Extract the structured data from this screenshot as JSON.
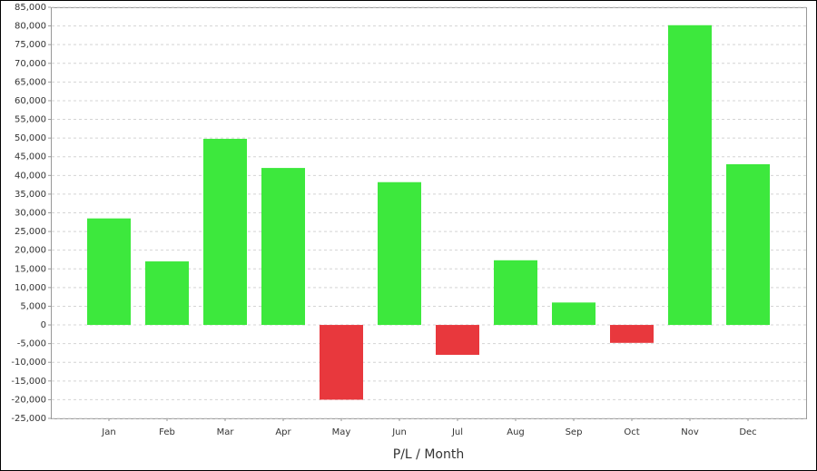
{
  "chart_data": {
    "type": "bar",
    "x_label": "P/L / Month",
    "categories": [
      "Jan",
      "Feb",
      "Mar",
      "Apr",
      "May",
      "Jun",
      "Jul",
      "Aug",
      "Sep",
      "Oct",
      "Nov",
      "Dec"
    ],
    "values": [
      28500,
      17000,
      49800,
      42000,
      -20000,
      38200,
      -8000,
      17300,
      6000,
      -4800,
      80200,
      43000
    ],
    "colors": {
      "positive": "#3de83d",
      "negative": "#e8383d"
    },
    "ylim": [
      -25000,
      85000
    ],
    "yticks": [
      {
        "value": -25000,
        "label": "-25,000"
      },
      {
        "value": -20000,
        "label": "-20,000"
      },
      {
        "value": -15000,
        "label": "-15,000"
      },
      {
        "value": -10000,
        "label": "-10,000"
      },
      {
        "value": -5000,
        "label": "-5,000"
      },
      0,
      {
        "value": 5000,
        "label": "5,000"
      },
      {
        "value": 10000,
        "label": "10,000"
      },
      {
        "value": 15000,
        "label": "15,000"
      },
      {
        "value": 20000,
        "label": "20,000"
      },
      {
        "value": 25000,
        "label": "25,000"
      },
      {
        "value": 30000,
        "label": "30,000"
      },
      {
        "value": 35000,
        "label": "35,000"
      },
      {
        "value": 40000,
        "label": "40,000"
      },
      {
        "value": 45000,
        "label": "45,000"
      },
      {
        "value": 50000,
        "label": "50,000"
      },
      {
        "value": 55000,
        "label": "55,000"
      },
      {
        "value": 60000,
        "label": "60,000"
      },
      {
        "value": 65000,
        "label": "65,000"
      },
      {
        "value": 70000,
        "label": "70,000"
      },
      {
        "value": 75000,
        "label": "75,000"
      },
      {
        "value": 80000,
        "label": "80,000"
      },
      {
        "value": 85000,
        "label": "85,000"
      }
    ],
    "grid": true
  }
}
